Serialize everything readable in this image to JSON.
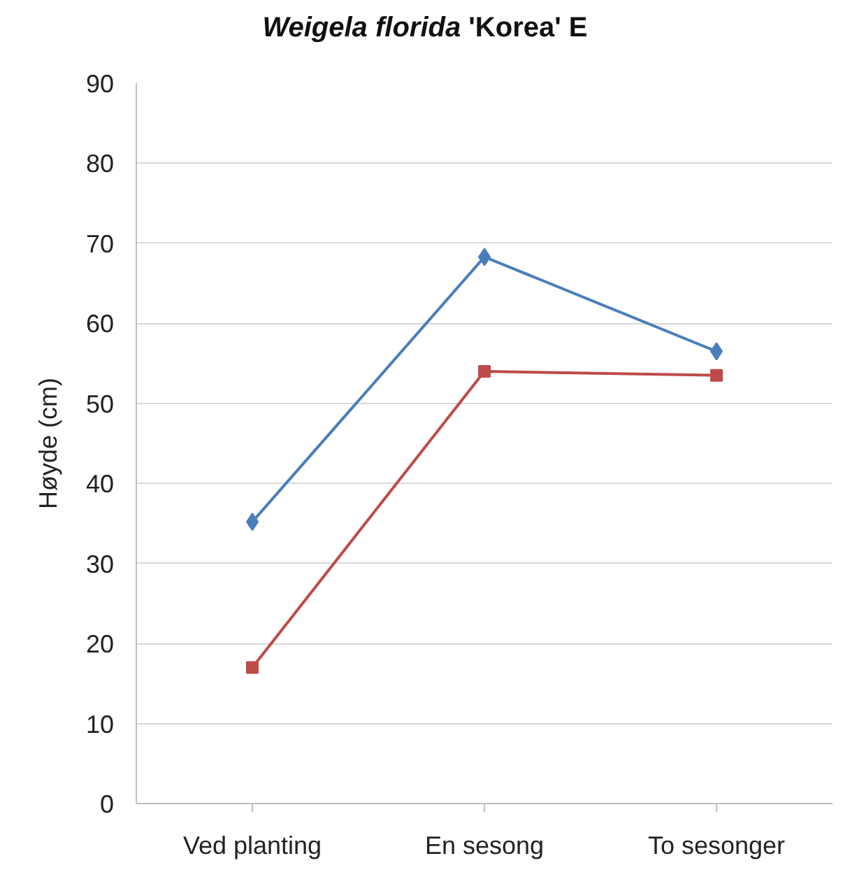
{
  "chart_data": {
    "type": "line",
    "title": "Weigela florida 'Korea' E",
    "ylabel": "Høyde (cm)",
    "categories": [
      "Ved planting",
      "En sesong",
      "To sesonger"
    ],
    "series": [
      {
        "color": "#4a7ebb",
        "marker": "diamond",
        "values": [
          35.2,
          68.3,
          56.5
        ]
      },
      {
        "color": "#be4b48",
        "marker": "square",
        "values": [
          17,
          54,
          53.5
        ]
      }
    ],
    "ylim": [
      0,
      90
    ],
    "yticks": [
      0,
      10,
      20,
      30,
      40,
      50,
      60,
      70,
      80,
      90
    ],
    "grid": "y",
    "line_style": "solid"
  }
}
